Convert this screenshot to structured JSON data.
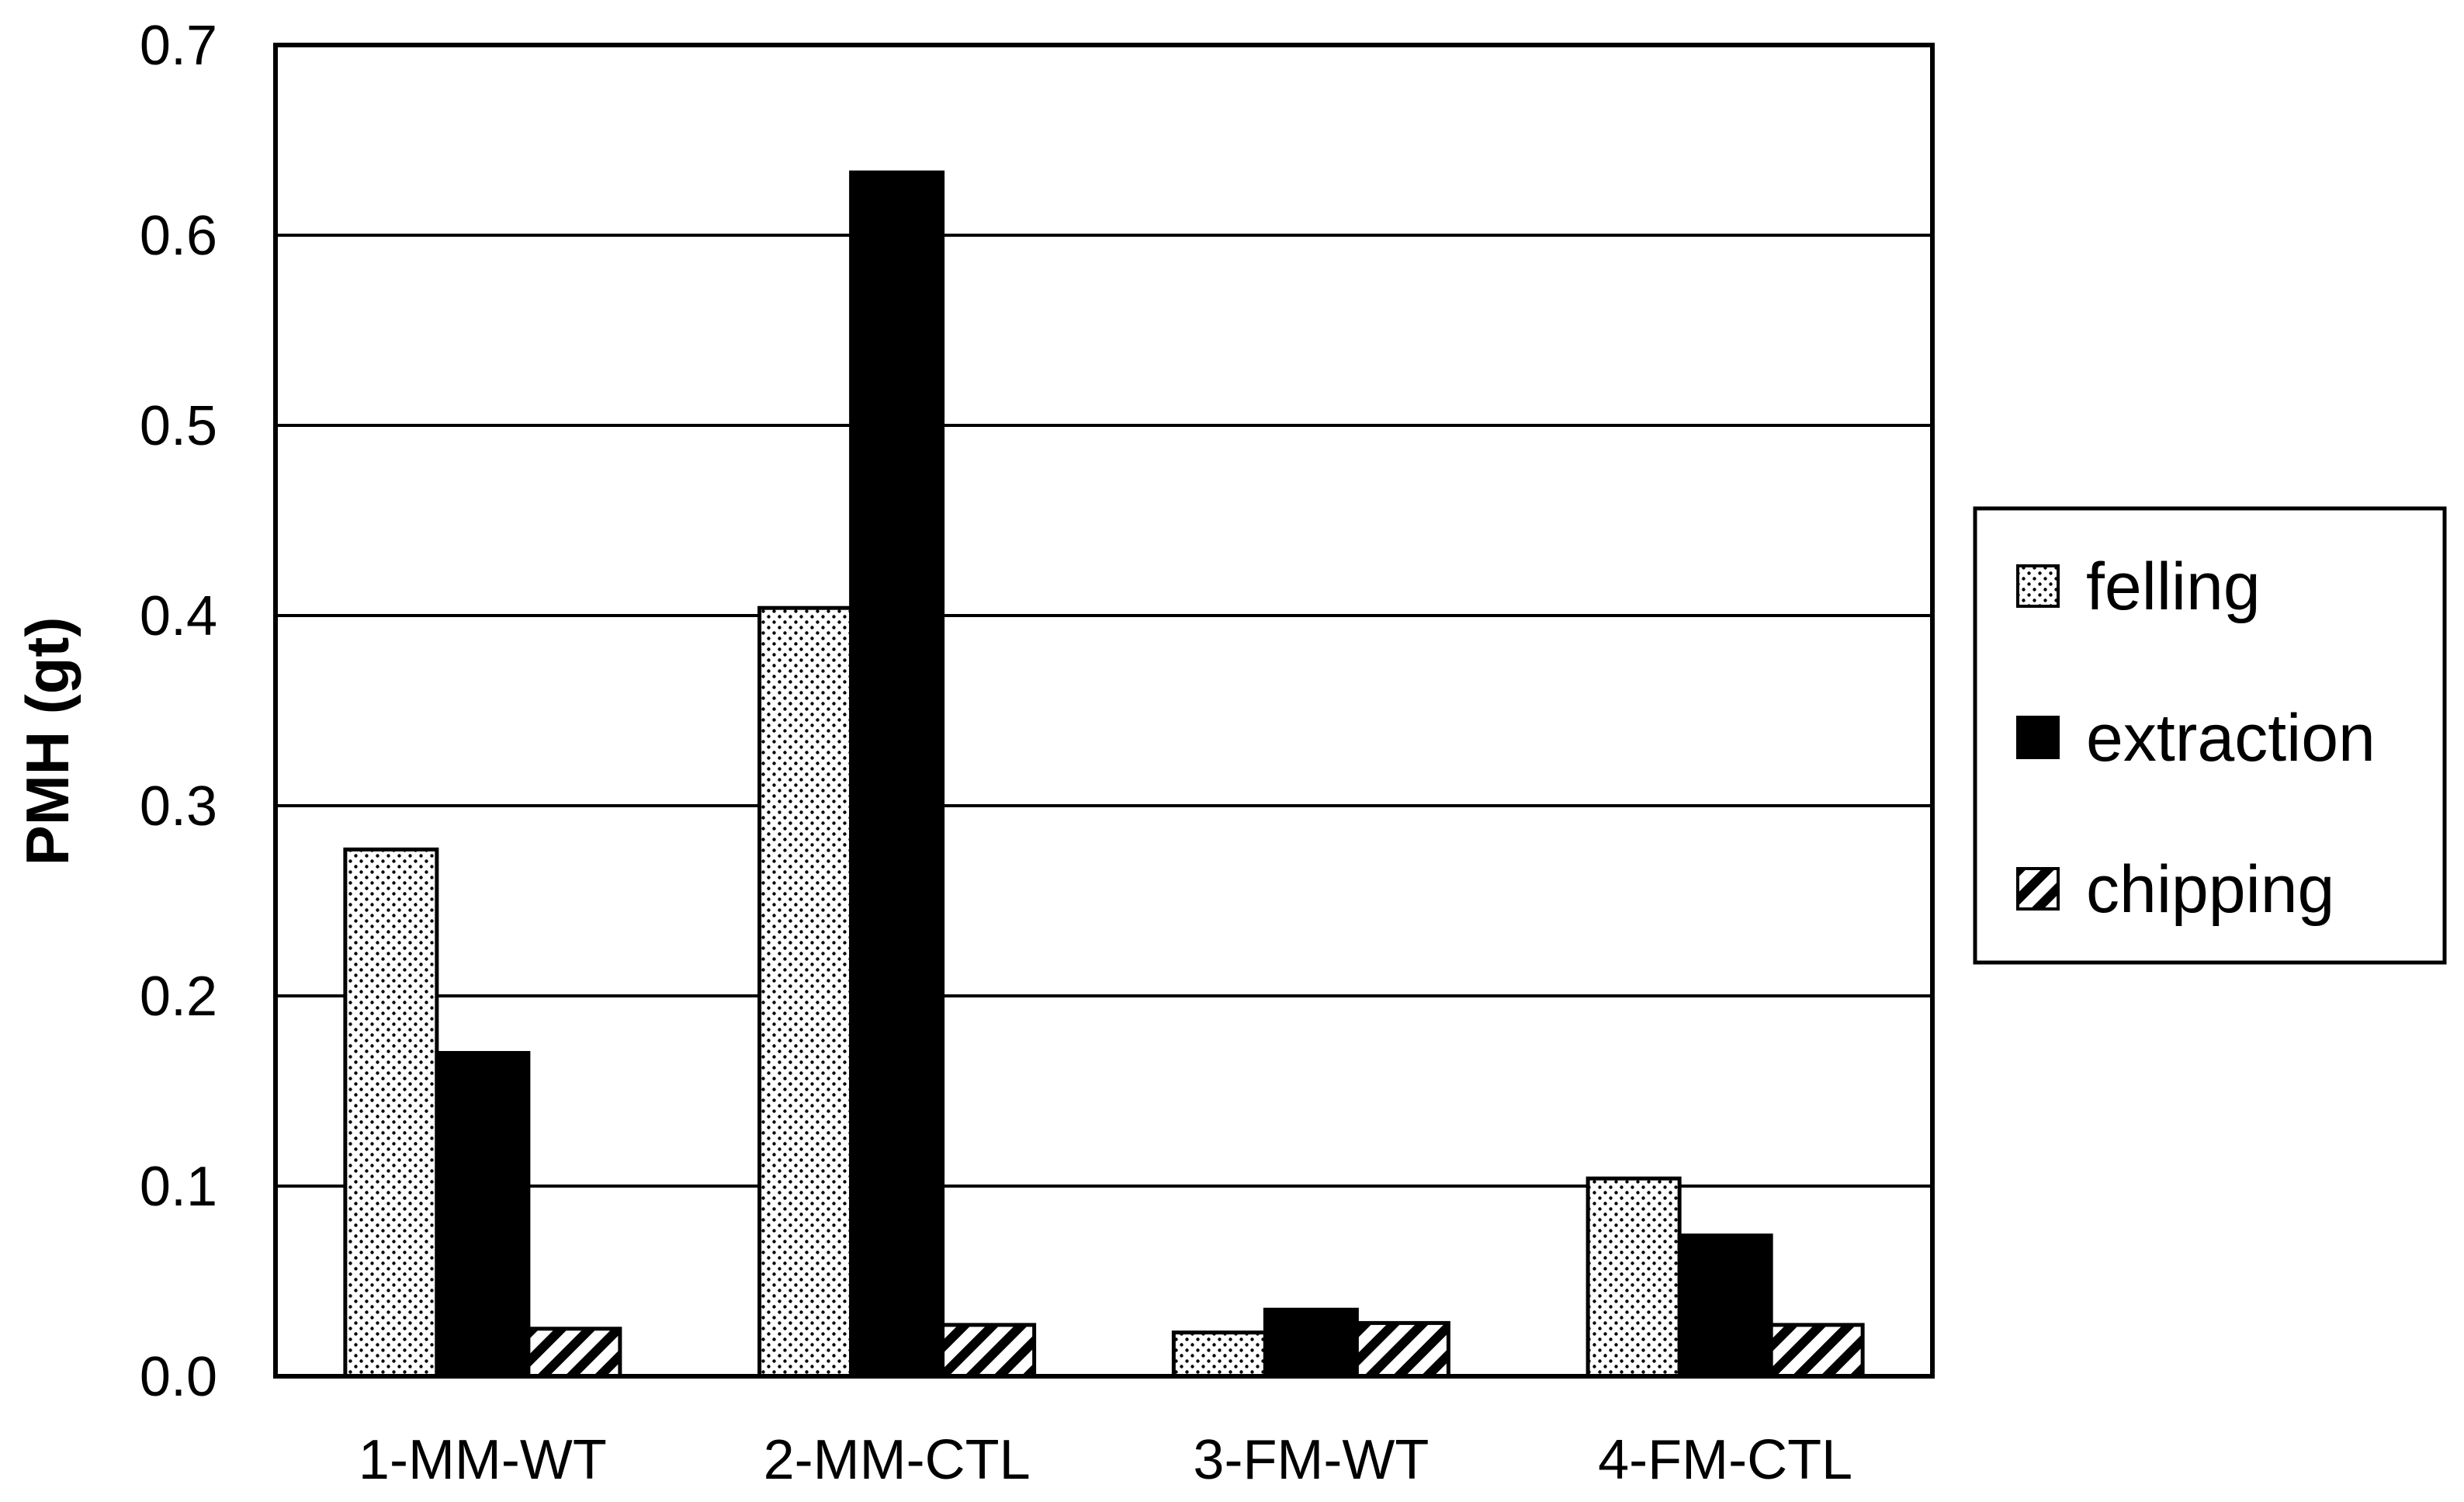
{
  "chart_data": {
    "type": "bar",
    "title": "",
    "xlabel": "",
    "ylabel": "PMH (gt)",
    "ylim": [
      0,
      0.7
    ],
    "yticks": [
      "0.0",
      "0.1",
      "0.2",
      "0.3",
      "0.4",
      "0.5",
      "0.6",
      "0.7"
    ],
    "grid": true,
    "legend_position": "right",
    "categories": [
      "1-MM-WT",
      "2-MM-CTL",
      "3-FM-WT",
      "4-FM-CTL"
    ],
    "series": [
      {
        "name": "felling",
        "pattern": "dots",
        "values": [
          0.277,
          0.404,
          0.023,
          0.104
        ]
      },
      {
        "name": "extraction",
        "pattern": "solid",
        "values": [
          0.17,
          0.633,
          0.035,
          0.074
        ]
      },
      {
        "name": "chipping",
        "pattern": "hatch",
        "values": [
          0.025,
          0.027,
          0.028,
          0.027
        ]
      }
    ],
    "colors": {
      "bar_fill_solid": "#000000",
      "bar_stroke": "#000000",
      "grid": "#000000",
      "background": "#ffffff"
    }
  }
}
